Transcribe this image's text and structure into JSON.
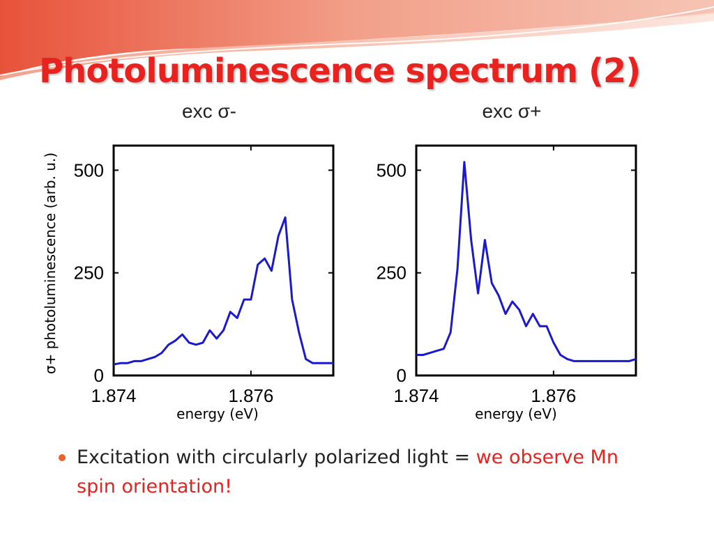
{
  "slide": {
    "title": "Photoluminescence spectrum (2)",
    "y_axis_label": "σ+  photoluminescence (arb. u.)",
    "bullet": {
      "text": "Excitation with circularly polarized light = ",
      "highlight": "we observe Mn spin orientation!"
    },
    "colors": {
      "title": "#e8231f",
      "highlight": "#e8231f",
      "bullet": "#e8622a",
      "line": "#1a1acc"
    }
  },
  "chart_data": [
    {
      "type": "line",
      "title": "exc σ-",
      "xlabel": "energy (eV)",
      "ylabel": "",
      "xlim": [
        1.874,
        1.8772
      ],
      "ylim": [
        0,
        560
      ],
      "x_ticks": [
        1.874,
        1.876
      ],
      "x_tick_labels": [
        "1.874",
        "1.876"
      ],
      "y_ticks": [
        0,
        250,
        500
      ],
      "y_tick_labels": [
        "0",
        "250",
        "500"
      ],
      "series": [
        {
          "x": [
            1.874,
            1.8741,
            1.8742,
            1.8743,
            1.8744,
            1.8745,
            1.8746,
            1.8747,
            1.8748,
            1.8749,
            1.875,
            1.8751,
            1.8752,
            1.8753,
            1.8754,
            1.8755,
            1.8756,
            1.8757,
            1.8758,
            1.8759,
            1.876,
            1.8761,
            1.8762,
            1.8763,
            1.8764,
            1.8765,
            1.8766,
            1.8767,
            1.8768,
            1.8769,
            1.877,
            1.8771,
            1.8772
          ],
          "values": [
            27,
            30,
            30,
            35,
            35,
            40,
            45,
            55,
            75,
            85,
            100,
            80,
            75,
            80,
            110,
            90,
            110,
            155,
            140,
            185,
            185,
            270,
            285,
            255,
            340,
            385,
            185,
            105,
            40,
            30,
            30,
            30,
            30
          ]
        }
      ]
    },
    {
      "type": "line",
      "title": "exc σ+",
      "xlabel": "energy (eV)",
      "ylabel": "",
      "xlim": [
        1.874,
        1.8772
      ],
      "ylim": [
        0,
        560
      ],
      "x_ticks": [
        1.874,
        1.876
      ],
      "x_tick_labels": [
        "1.874",
        "1.876"
      ],
      "y_ticks": [
        0,
        250,
        500
      ],
      "y_tick_labels": [
        "0",
        "250",
        "500"
      ],
      "series": [
        {
          "x": [
            1.874,
            1.8741,
            1.8742,
            1.8743,
            1.8744,
            1.8745,
            1.8746,
            1.8747,
            1.8748,
            1.8749,
            1.875,
            1.8751,
            1.8752,
            1.8753,
            1.8754,
            1.8755,
            1.8756,
            1.8757,
            1.8758,
            1.8759,
            1.876,
            1.8761,
            1.8762,
            1.8763,
            1.8764,
            1.8765,
            1.8766,
            1.8767,
            1.8768,
            1.8769,
            1.877,
            1.8771,
            1.8772
          ],
          "values": [
            50,
            50,
            55,
            60,
            65,
            105,
            260,
            520,
            330,
            200,
            330,
            225,
            195,
            150,
            180,
            160,
            120,
            150,
            120,
            120,
            80,
            50,
            40,
            35,
            35,
            35,
            35,
            35,
            35,
            35,
            35,
            35,
            40
          ]
        }
      ]
    }
  ]
}
